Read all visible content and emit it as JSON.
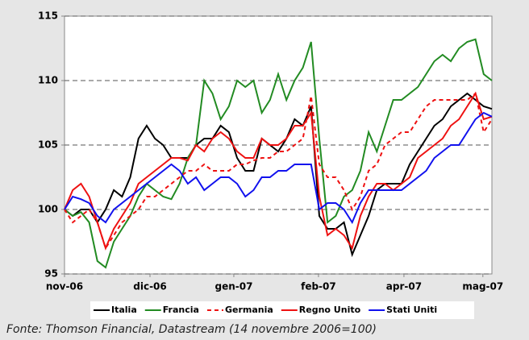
{
  "chart_data": {
    "type": "line",
    "x": [
      0,
      1,
      2,
      3,
      4,
      5,
      6,
      7,
      8,
      9,
      10,
      11,
      12,
      13,
      14,
      15,
      16,
      17,
      18,
      19,
      20,
      21,
      22,
      23,
      24,
      25,
      26,
      27,
      28,
      29,
      30,
      31,
      32,
      33,
      34,
      35,
      36,
      37,
      38,
      39,
      40,
      41,
      42,
      43,
      44,
      45,
      46,
      47,
      48,
      49,
      50,
      51,
      52
    ],
    "xlim": [
      0,
      52
    ],
    "xticks": [
      {
        "value": 0,
        "label": "nov-06"
      },
      {
        "value": 10.4,
        "label": "dic-06"
      },
      {
        "value": 20.6,
        "label": "gen-07"
      },
      {
        "value": 30.9,
        "label": "feb-07"
      },
      {
        "value": 41.3,
        "label": "apr-07"
      },
      {
        "value": 50.9,
        "label": "mag-07"
      }
    ],
    "ylim": [
      95,
      115
    ],
    "yticks": [
      95,
      100,
      105,
      110,
      115
    ],
    "grid": true,
    "series": [
      {
        "name": "Italia",
        "color": "#000000",
        "dash": "solid",
        "values": [
          100,
          99.5,
          100,
          100,
          99,
          100,
          101.5,
          101,
          102.5,
          105.5,
          106.5,
          105.5,
          105,
          104,
          104,
          104,
          105,
          105.5,
          105.5,
          106.5,
          106,
          104,
          103,
          103,
          105.5,
          105,
          104.5,
          105.5,
          107,
          106.5,
          108,
          99.5,
          98.5,
          98.5,
          99,
          96.5,
          98,
          99.5,
          101.5,
          102,
          102,
          102,
          103.5,
          104.5,
          105.5,
          106.5,
          107,
          108,
          108.5,
          109,
          108.5,
          108,
          107.8
        ]
      },
      {
        "name": "Francia",
        "color": "#228b22",
        "dash": "solid",
        "values": [
          100,
          99.5,
          99.8,
          99,
          96,
          95.5,
          97.5,
          98.5,
          99.5,
          101,
          102,
          101.5,
          101,
          100.8,
          102,
          104,
          105,
          110,
          109,
          107,
          108,
          110,
          109.5,
          110,
          107.5,
          108.5,
          110.5,
          108.5,
          110,
          111,
          113,
          105.5,
          99,
          99.5,
          101,
          101.5,
          103,
          106,
          104.5,
          106.5,
          108.5,
          108.5,
          109,
          109.5,
          110.5,
          111.5,
          112,
          111.5,
          112.5,
          113,
          113.2,
          110.5,
          110
        ]
      },
      {
        "name": "Germania",
        "color": "#ee1111",
        "dash": "dashed",
        "values": [
          100,
          99,
          99.5,
          100,
          99,
          97,
          98,
          99,
          99.5,
          100,
          101,
          101,
          101.5,
          102,
          102.5,
          103,
          103,
          103.5,
          103,
          103,
          103,
          103.5,
          103.5,
          103.8,
          104,
          104,
          104.5,
          104.5,
          105,
          105.5,
          108.8,
          103.5,
          102.5,
          102.5,
          101.5,
          100,
          101,
          103,
          103.5,
          105,
          105.5,
          106,
          106,
          107,
          108,
          108.5,
          108.5,
          108.5,
          108.5,
          108.5,
          109,
          106,
          107
        ]
      },
      {
        "name": "Regno Unito",
        "color": "#ee1111",
        "dash": "solid",
        "values": [
          100,
          101.5,
          102,
          101,
          99,
          97,
          98.5,
          99.5,
          100.5,
          102,
          102.5,
          103,
          103.5,
          104,
          104,
          103.8,
          105,
          104.5,
          105.5,
          106,
          105.5,
          104.5,
          104,
          104,
          105.5,
          105,
          105,
          105.5,
          106.5,
          106.5,
          107.5,
          101,
          98,
          98.5,
          98,
          97,
          99.5,
          101,
          102,
          102,
          101.5,
          102,
          102.5,
          104,
          104.5,
          105,
          105.5,
          106.5,
          107,
          108,
          109,
          107,
          107.2
        ]
      },
      {
        "name": "Stati Uniti",
        "color": "#1111ee",
        "dash": "solid",
        "values": [
          100,
          101,
          100.8,
          100.5,
          99.5,
          99,
          100,
          100.5,
          101,
          101.5,
          102,
          102.5,
          103,
          103.5,
          103,
          102,
          102.5,
          101.5,
          102,
          102.5,
          102.5,
          102,
          101,
          101.5,
          102.5,
          102.5,
          103,
          103,
          103.5,
          103.5,
          103.5,
          100,
          100.5,
          100.5,
          100,
          99,
          100.5,
          101.5,
          101.5,
          101.5,
          101.5,
          101.5,
          102,
          102.5,
          103,
          104,
          104.5,
          105,
          105,
          106,
          107,
          107.5,
          107.2
        ]
      }
    ],
    "source": "Fonte: Thomson Financial, Datastream (14 novembre 2006=100)"
  }
}
